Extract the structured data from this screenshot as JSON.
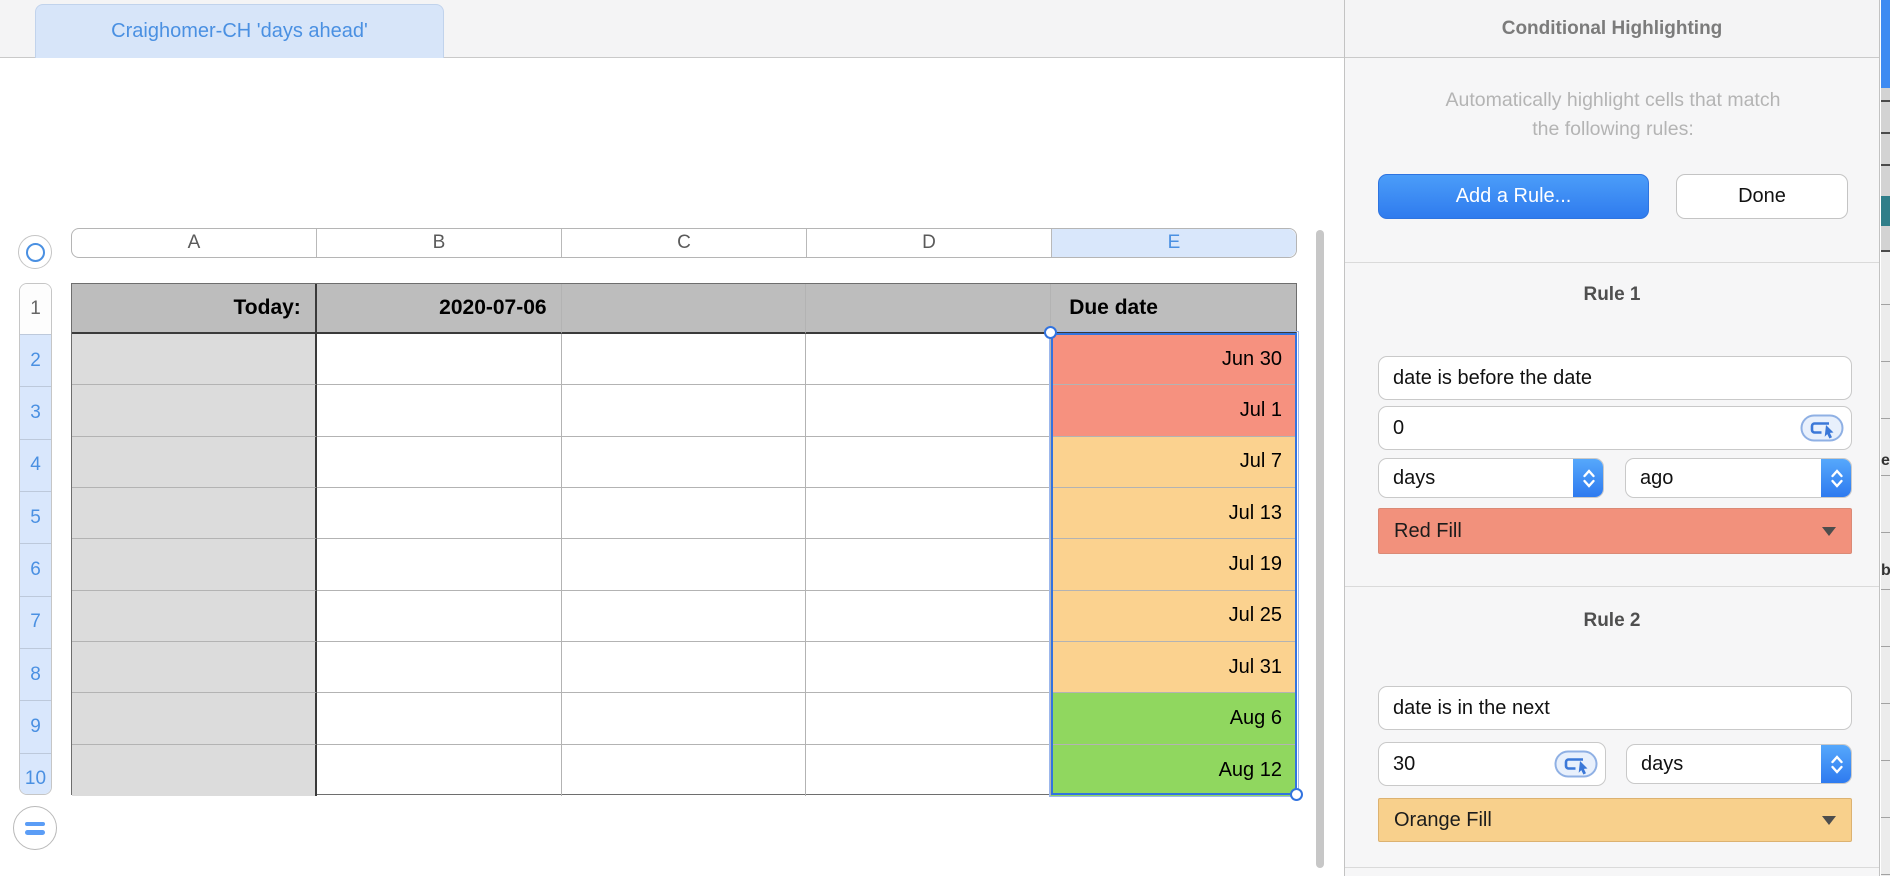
{
  "tab_bar": {
    "tab_label": "Craighomer-CH 'days ahead'"
  },
  "panel": {
    "title": "Conditional Highlighting",
    "description_line1": "Automatically highlight cells that match",
    "description_line2": "the following rules:",
    "add_rule_label": "Add a Rule...",
    "done_label": "Done",
    "accent_blue": "#2f7bee",
    "rules": [
      {
        "name": "Rule 1",
        "condition": "date is before the date",
        "value": "0",
        "unit": "days",
        "direction": "ago",
        "fill_label": "Red Fill",
        "fill_color": "#F2917C",
        "fill_border": "#DA8A76"
      },
      {
        "name": "Rule 2",
        "condition": "date is in the next",
        "value": "30",
        "unit": "days",
        "fill_label": "Orange Fill",
        "fill_color": "#F8D08C",
        "fill_border": "#DCB271"
      }
    ]
  },
  "spreadsheet": {
    "column_headers": [
      "A",
      "B",
      "C",
      "D",
      "E"
    ],
    "selected_column": "E",
    "row_numbers": [
      "1",
      "2",
      "3",
      "4",
      "5",
      "6",
      "7",
      "8",
      "9",
      "10"
    ],
    "selected_rows": [
      "2",
      "3",
      "4",
      "5",
      "6",
      "7",
      "8",
      "9",
      "10"
    ],
    "header_row": {
      "a": "Today:",
      "b": "2020-07-06",
      "c": "",
      "d": "",
      "e": "Due date"
    },
    "due_dates": [
      {
        "row": "2",
        "label": "Jun 30",
        "fill": "red"
      },
      {
        "row": "3",
        "label": "Jul 1",
        "fill": "red"
      },
      {
        "row": "4",
        "label": "Jul 7",
        "fill": "orange"
      },
      {
        "row": "5",
        "label": "Jul 13",
        "fill": "orange"
      },
      {
        "row": "6",
        "label": "Jul 19",
        "fill": "orange"
      },
      {
        "row": "7",
        "label": "Jul 25",
        "fill": "orange"
      },
      {
        "row": "8",
        "label": "Jul 31",
        "fill": "orange"
      },
      {
        "row": "9",
        "label": "Aug 6",
        "fill": "green"
      },
      {
        "row": "10",
        "label": "Aug 12",
        "fill": "green"
      }
    ],
    "fill_colors": {
      "red": "#F6917F",
      "orange": "#FBD28F",
      "green": "#90D75F"
    }
  },
  "background_window": {
    "edge_letters": [
      "e",
      "b"
    ]
  }
}
